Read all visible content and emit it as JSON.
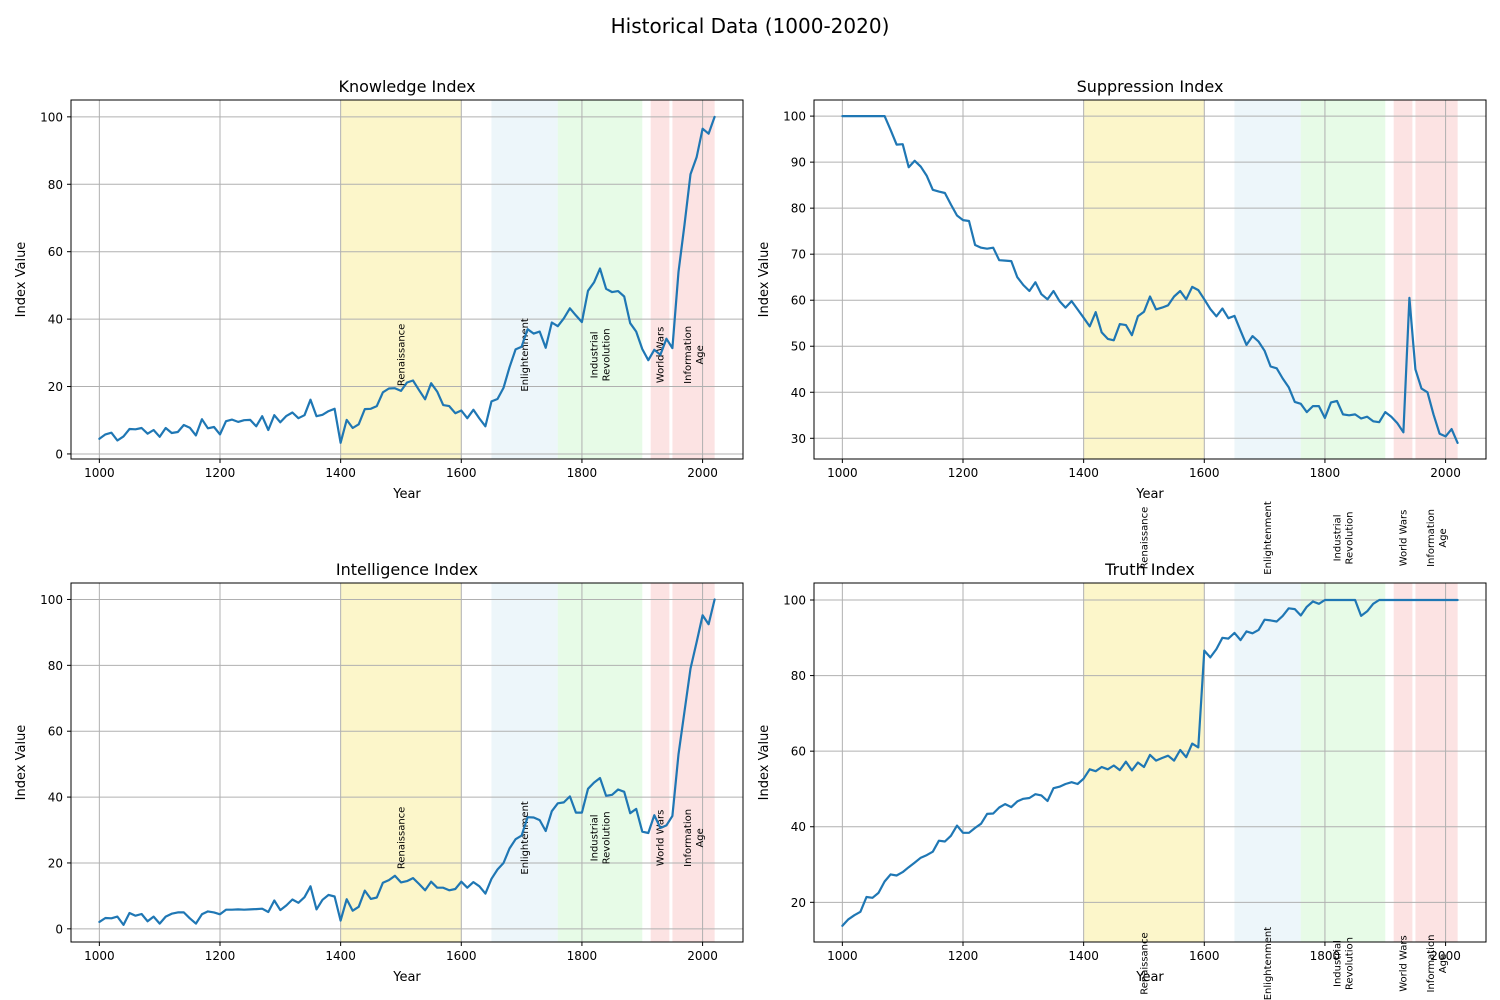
{
  "figure": {
    "title": "Historical Data (1000-2020)"
  },
  "chart_data": {
    "type": "line",
    "x": [
      1000,
      1010,
      1020,
      1030,
      1040,
      1050,
      1060,
      1070,
      1080,
      1090,
      1100,
      1110,
      1120,
      1130,
      1140,
      1150,
      1160,
      1170,
      1180,
      1190,
      1200,
      1210,
      1220,
      1230,
      1240,
      1250,
      1260,
      1270,
      1280,
      1290,
      1300,
      1310,
      1320,
      1330,
      1340,
      1350,
      1360,
      1370,
      1380,
      1390,
      1400,
      1410,
      1420,
      1430,
      1440,
      1450,
      1460,
      1470,
      1480,
      1490,
      1500,
      1510,
      1520,
      1530,
      1540,
      1550,
      1560,
      1570,
      1580,
      1590,
      1600,
      1610,
      1620,
      1630,
      1640,
      1650,
      1660,
      1670,
      1680,
      1690,
      1700,
      1710,
      1720,
      1730,
      1740,
      1750,
      1760,
      1770,
      1780,
      1790,
      1800,
      1810,
      1820,
      1830,
      1840,
      1850,
      1860,
      1870,
      1880,
      1890,
      1900,
      1910,
      1920,
      1930,
      1940,
      1950,
      1960,
      1970,
      1980,
      1990,
      2000,
      2010,
      2020
    ],
    "eras": [
      {
        "label": "Renaissance",
        "start": 1400,
        "end": 1600,
        "color": "#f5e050",
        "alpha": 0.3
      },
      {
        "label": "Enlightenment",
        "start": 1650,
        "end": 1760,
        "color": "#add8e6",
        "alpha": 0.22
      },
      {
        "label": "Industrial\nRevolution",
        "start": 1760,
        "end": 1900,
        "color": "#90ee90",
        "alpha": 0.22
      },
      {
        "label": "World Wars",
        "start": 1914,
        "end": 1945,
        "color": "#f08080",
        "alpha": 0.22
      },
      {
        "label": "Information\nAge",
        "start": 1950,
        "end": 2020,
        "color": "#f08080",
        "alpha": 0.22
      }
    ],
    "panels": [
      {
        "title": "Knowledge Index",
        "xlabel": "Year",
        "ylabel": "Index Value",
        "xlim": [
          953,
          2067
        ],
        "ylim": [
          -1.5,
          105
        ],
        "xticks": [
          1000,
          1200,
          1400,
          1600,
          1800,
          2000
        ],
        "yticks": [
          0,
          20,
          40,
          60,
          80,
          100
        ],
        "series": [
          {
            "color": "#1f77b4",
            "values": [
              4.5,
              5.8,
              6.3,
              4,
              5.2,
              7.4,
              7.3,
              7.7,
              6,
              7.1,
              5.1,
              7.7,
              6.2,
              6.5,
              8.6,
              7.8,
              5.5,
              10.3,
              7.6,
              8,
              5.8,
              9.7,
              10.2,
              9.5,
              10,
              10.1,
              8.2,
              11.2,
              7.1,
              11.5,
              9.4,
              11.3,
              12.3,
              10.6,
              11.5,
              16.1,
              11.2,
              11.6,
              12.7,
              13.4,
              3.3,
              10.1,
              7.7,
              8.8,
              13.3,
              13.4,
              14.2,
              18.3,
              19.4,
              19.5,
              18.7,
              21.2,
              21.8,
              18.9,
              16.2,
              21,
              18.5,
              14.5,
              14.2,
              12.1,
              12.9,
              10.6,
              13.1,
              10.5,
              8.2,
              15.6,
              16.3,
              19.6,
              25.7,
              31,
              31.8,
              37,
              35.7,
              36.3,
              31.5,
              39,
              37.9,
              40.2,
              43.2,
              41.1,
              39.1,
              48.4,
              50.9,
              55,
              49,
              48,
              48.3,
              46.7,
              38.8,
              36.3,
              31.1,
              27.8,
              30.9,
              29.4,
              34.2,
              31.4,
              54,
              68,
              83,
              88,
              96.5,
              95,
              100
            ]
          }
        ]
      },
      {
        "title": "Suppression Index",
        "xlabel": "Year",
        "ylabel": "Index Value",
        "xlim": [
          953,
          2067
        ],
        "ylim": [
          25.5,
          103.5
        ],
        "xticks": [
          1000,
          1200,
          1400,
          1600,
          1800,
          2000
        ],
        "yticks": [
          30,
          40,
          50,
          60,
          70,
          80,
          90,
          100
        ],
        "series": [
          {
            "color": "#1f77b4",
            "values": [
              100,
              100,
              100,
              100,
              100,
              100,
              100,
              100,
              97,
              93.8,
              93.9,
              88.9,
              90.3,
              89,
              87,
              84,
              83.6,
              83.3,
              80.8,
              78.4,
              77.4,
              77.2,
              72,
              71.4,
              71.2,
              71.4,
              68.7,
              68.6,
              68.5,
              65,
              63.3,
              62,
              63.9,
              61.3,
              60.2,
              62,
              59.8,
              58.4,
              59.8,
              58,
              56.2,
              54.3,
              57.4,
              53,
              51.6,
              51.3,
              54.8,
              54.6,
              52.4,
              56.5,
              57.5,
              60.8,
              58,
              58.4,
              58.9,
              60.8,
              62,
              60.2,
              62.9,
              62.2,
              60.2,
              58.1,
              56.5,
              58.2,
              56.1,
              56.6,
              53.4,
              50.3,
              52.2,
              51,
              49,
              45.6,
              45.2,
              43,
              41.1,
              37.9,
              37.5,
              35.7,
              37,
              37,
              34.4,
              37.8,
              38.1,
              35.2,
              35,
              35.2,
              34.3,
              34.7,
              33.7,
              33.5,
              35.7,
              34.7,
              33.3,
              31.3,
              60.5,
              45,
              40.8,
              40,
              35.2,
              31,
              30.4,
              32,
              29
            ]
          }
        ]
      },
      {
        "title": "Intelligence Index",
        "xlabel": "Year",
        "ylabel": "Index Value",
        "xlim": [
          953,
          2067
        ],
        "ylim": [
          -4,
          105
        ],
        "xticks": [
          1000,
          1200,
          1400,
          1600,
          1800,
          2000
        ],
        "yticks": [
          0,
          20,
          40,
          60,
          80,
          100
        ],
        "series": [
          {
            "color": "#1f77b4",
            "values": [
              2.1,
              3.3,
              3.2,
              3.7,
              1.2,
              4.8,
              4,
              4.5,
              2.3,
              3.7,
              1.6,
              3.7,
              4.6,
              5,
              5,
              3.2,
              1.6,
              4.4,
              5.3,
              5,
              4.4,
              5.8,
              5.8,
              5.9,
              5.8,
              5.9,
              6,
              6.1,
              5.1,
              8.6,
              5.7,
              7.1,
              8.9,
              7.9,
              9.6,
              12.9,
              5.9,
              8.8,
              10.3,
              9.8,
              2.5,
              9,
              5.5,
              6.7,
              11.6,
              9.1,
              9.5,
              14,
              14.8,
              16.1,
              14.1,
              14.5,
              15.4,
              13.6,
              11.7,
              14.3,
              12.5,
              12.5,
              11.7,
              12.1,
              14.3,
              12.5,
              14.2,
              12.9,
              10.7,
              15.2,
              18,
              20,
              24.4,
              27.2,
              28.3,
              33.9,
              33.8,
              33,
              29.7,
              35.7,
              38.1,
              38.4,
              40.2,
              35.3,
              35.3,
              42.5,
              44.4,
              45.8,
              40.4,
              40.7,
              42.3,
              41.6,
              35.1,
              36.4,
              29.5,
              29.1,
              34.5,
              30.6,
              31.4,
              34.3,
              53,
              66,
              79,
              87,
              95.2,
              92.5,
              100
            ]
          }
        ]
      },
      {
        "title": "Truth Index",
        "xlabel": "Year",
        "ylabel": "Index Value",
        "xlim": [
          953,
          2067
        ],
        "ylim": [
          9.5,
          104.5
        ],
        "xticks": [
          1000,
          1200,
          1400,
          1600,
          1800,
          2000
        ],
        "yticks": [
          20,
          40,
          60,
          80,
          100
        ],
        "series": [
          {
            "color": "#1f77b4",
            "values": [
              13.8,
              15.5,
              16.6,
              17.5,
              21.4,
              21.2,
              22.5,
              25.5,
              27.4,
              27.1,
              28,
              29.3,
              30.5,
              31.8,
              32.5,
              33.4,
              36.3,
              36.1,
              37.6,
              40.3,
              38.4,
              38.4,
              39.7,
              40.8,
              43.4,
              43.5,
              45.1,
              46,
              45.2,
              46.7,
              47.4,
              47.6,
              48.6,
              48.3,
              46.8,
              50.2,
              50.6,
              51.3,
              51.8,
              51.3,
              52.7,
              55.2,
              54.7,
              55.8,
              55.2,
              56.2,
              55,
              57.2,
              54.9,
              57,
              55.8,
              59,
              57.5,
              58.2,
              58.8,
              57.5,
              60.3,
              58.4,
              62,
              61,
              86.6,
              84.8,
              87,
              90,
              89.8,
              91.3,
              89.4,
              91.7,
              91.2,
              92.1,
              94.8,
              94.6,
              94.3,
              95.8,
              97.8,
              97.6,
              95.9,
              98.2,
              99.6,
              99,
              100,
              100,
              100,
              100,
              100,
              100,
              95.8,
              97,
              99,
              100,
              100,
              100,
              100,
              100,
              100,
              100,
              100,
              100,
              100,
              100,
              100,
              100,
              100
            ]
          }
        ]
      }
    ]
  }
}
